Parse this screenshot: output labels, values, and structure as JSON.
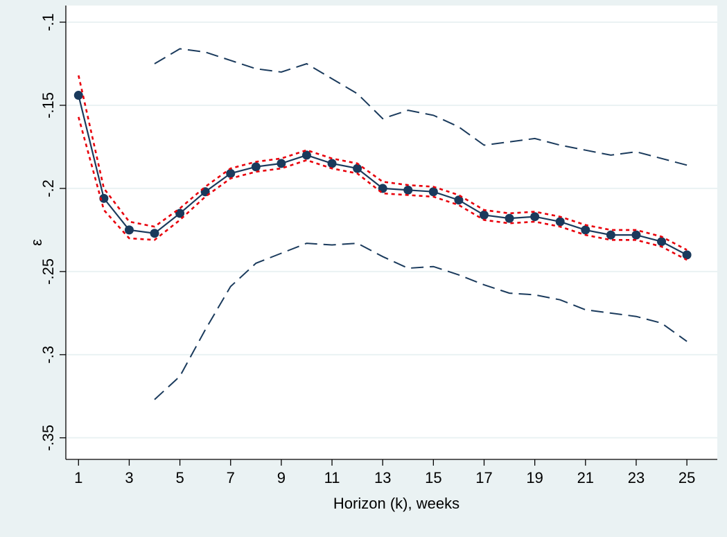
{
  "chart_data": {
    "type": "line",
    "title": "",
    "xlabel": "Horizon (k), weeks",
    "ylabel": "ε",
    "xlim": [
      0.5,
      26.2
    ],
    "ylim": [
      -0.363,
      -0.09
    ],
    "x_ticks": [
      1,
      3,
      5,
      7,
      9,
      11,
      13,
      15,
      17,
      19,
      21,
      23,
      25
    ],
    "x_tick_labels": [
      "1",
      "3",
      "5",
      "7",
      "9",
      "11",
      "13",
      "15",
      "17",
      "19",
      "21",
      "23",
      "25"
    ],
    "y_ticks": [
      -0.1,
      -0.15,
      -0.2,
      -0.25,
      -0.3,
      -0.35
    ],
    "y_tick_labels": [
      "-.1",
      "-.15",
      "-.2",
      "-.25",
      "-.3",
      "-.35"
    ],
    "grid": true,
    "legend": "none",
    "colors": {
      "background": "#eaf2f3",
      "plot_area": "#ffffff",
      "gridline": "#eaf2f3",
      "estimate": "#1a3a5c",
      "inner_band": "#e8000b",
      "outer_band": "#1a3a5c"
    },
    "series": [
      {
        "role": "estimate",
        "style": "solid line with circle markers",
        "x": [
          1,
          2,
          3,
          4,
          5,
          6,
          7,
          8,
          9,
          10,
          11,
          12,
          13,
          14,
          15,
          16,
          17,
          18,
          19,
          20,
          21,
          22,
          23,
          24,
          25
        ],
        "y": [
          -0.144,
          -0.206,
          -0.225,
          -0.227,
          -0.215,
          -0.202,
          -0.191,
          -0.187,
          -0.185,
          -0.18,
          -0.185,
          -0.188,
          -0.2,
          -0.201,
          -0.202,
          -0.207,
          -0.216,
          -0.218,
          -0.217,
          -0.22,
          -0.225,
          -0.228,
          -0.228,
          -0.232,
          -0.24
        ]
      },
      {
        "role": "inner_upper",
        "style": "red short-dash",
        "x": [
          1,
          2,
          3,
          4,
          5,
          6,
          7,
          8,
          9,
          10,
          11,
          12,
          13,
          14,
          15,
          16,
          17,
          18,
          19,
          20,
          21,
          22,
          23,
          24,
          25
        ],
        "y": [
          -0.132,
          -0.2,
          -0.22,
          -0.223,
          -0.212,
          -0.199,
          -0.188,
          -0.184,
          -0.182,
          -0.177,
          -0.182,
          -0.185,
          -0.196,
          -0.198,
          -0.199,
          -0.204,
          -0.213,
          -0.215,
          -0.214,
          -0.217,
          -0.222,
          -0.225,
          -0.225,
          -0.229,
          -0.237
        ]
      },
      {
        "role": "inner_lower",
        "style": "red short-dash",
        "x": [
          1,
          2,
          3,
          4,
          5,
          6,
          7,
          8,
          9,
          10,
          11,
          12,
          13,
          14,
          15,
          16,
          17,
          18,
          19,
          20,
          21,
          22,
          23,
          24,
          25
        ],
        "y": [
          -0.157,
          -0.213,
          -0.23,
          -0.231,
          -0.219,
          -0.205,
          -0.194,
          -0.19,
          -0.188,
          -0.183,
          -0.188,
          -0.191,
          -0.203,
          -0.204,
          -0.205,
          -0.21,
          -0.219,
          -0.221,
          -0.22,
          -0.223,
          -0.228,
          -0.231,
          -0.231,
          -0.235,
          -0.243
        ]
      },
      {
        "role": "outer_upper",
        "style": "navy long-dash",
        "x": [
          4,
          5,
          6,
          7,
          8,
          9,
          10,
          11,
          12,
          13,
          14,
          15,
          16,
          17,
          18,
          19,
          20,
          21,
          22,
          23,
          24,
          25
        ],
        "y": [
          -0.125,
          -0.116,
          -0.118,
          -0.123,
          -0.128,
          -0.13,
          -0.125,
          -0.134,
          -0.143,
          -0.158,
          -0.153,
          -0.156,
          -0.163,
          -0.174,
          -0.172,
          -0.17,
          -0.174,
          -0.177,
          -0.18,
          -0.178,
          -0.182,
          -0.186
        ]
      },
      {
        "role": "outer_lower",
        "style": "navy long-dash",
        "x": [
          4,
          5,
          6,
          7,
          8,
          9,
          10,
          11,
          12,
          13,
          14,
          15,
          16,
          17,
          18,
          19,
          20,
          21,
          22,
          23,
          24,
          25
        ],
        "y": [
          -0.327,
          -0.313,
          -0.285,
          -0.259,
          -0.245,
          -0.239,
          -0.233,
          -0.234,
          -0.233,
          -0.241,
          -0.248,
          -0.247,
          -0.252,
          -0.258,
          -0.263,
          -0.264,
          -0.267,
          -0.273,
          -0.275,
          -0.277,
          -0.281,
          -0.292
        ]
      }
    ]
  }
}
